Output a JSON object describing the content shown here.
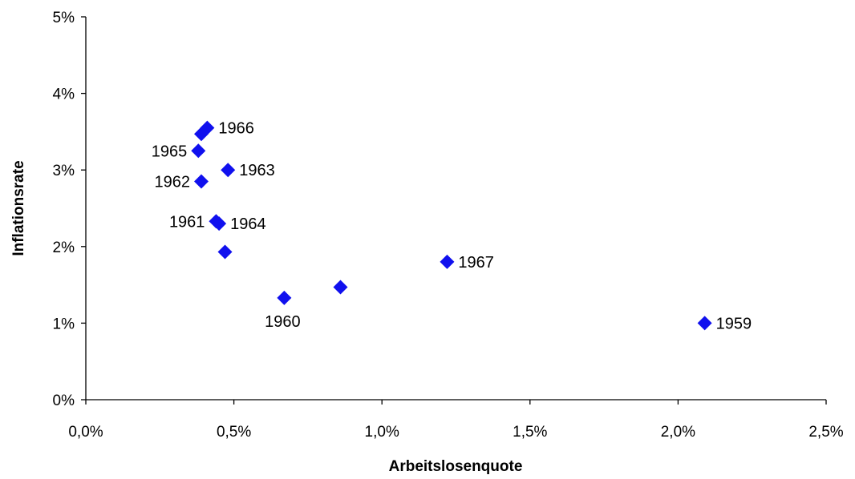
{
  "chart_data": {
    "type": "scatter",
    "title": "",
    "xlabel": "Arbeitslosenquote",
    "ylabel": "Inflationsrate",
    "xlim": [
      0,
      2.5
    ],
    "ylim": [
      0,
      5
    ],
    "x_ticks": [
      {
        "value": 0,
        "label": "0,0%"
      },
      {
        "value": 0.5,
        "label": "0,5%"
      },
      {
        "value": 1.0,
        "label": "1,0%"
      },
      {
        "value": 1.5,
        "label": "1,5%"
      },
      {
        "value": 2.0,
        "label": "2,0%"
      },
      {
        "value": 2.5,
        "label": "2,5%"
      }
    ],
    "y_ticks": [
      {
        "value": 0,
        "label": "0%"
      },
      {
        "value": 1,
        "label": "1%"
      },
      {
        "value": 2,
        "label": "2%"
      },
      {
        "value": 3,
        "label": "3%"
      },
      {
        "value": 4,
        "label": "4%"
      },
      {
        "value": 5,
        "label": "5%"
      }
    ],
    "grid": false,
    "marker_color": "#1010ee",
    "marker_shape": "diamond",
    "points": [
      {
        "x": 2.09,
        "y": 1.0,
        "label": "1959",
        "label_pos": "right"
      },
      {
        "x": 0.67,
        "y": 1.33,
        "label": "1960",
        "label_pos": "below"
      },
      {
        "x": 0.44,
        "y": 2.33,
        "label": "1961",
        "label_pos": "left"
      },
      {
        "x": 0.39,
        "y": 2.85,
        "label": "1962",
        "label_pos": "left"
      },
      {
        "x": 0.48,
        "y": 3.0,
        "label": "1963",
        "label_pos": "right"
      },
      {
        "x": 0.45,
        "y": 2.3,
        "label": "1964",
        "label_pos": "right"
      },
      {
        "x": 0.38,
        "y": 3.25,
        "label": "1965",
        "label_pos": "left"
      },
      {
        "x": 0.41,
        "y": 3.55,
        "label": "1966",
        "label_pos": "right"
      },
      {
        "x": 1.22,
        "y": 1.8,
        "label": "1967",
        "label_pos": "right"
      },
      {
        "x": 0.39,
        "y": 3.47,
        "label": "",
        "label_pos": "none"
      },
      {
        "x": 0.47,
        "y": 1.93,
        "label": "",
        "label_pos": "none"
      },
      {
        "x": 0.86,
        "y": 1.47,
        "label": "",
        "label_pos": "none"
      }
    ]
  }
}
